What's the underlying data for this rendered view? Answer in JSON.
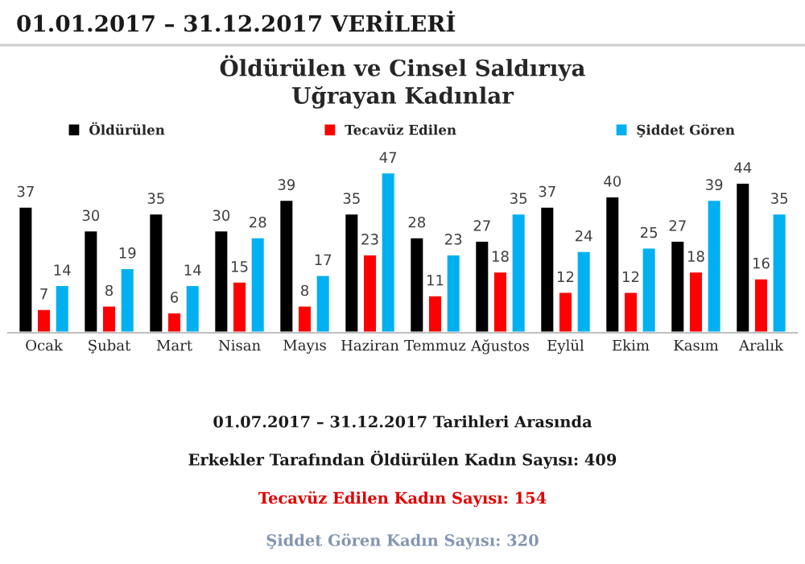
{
  "chart_data": {
    "type": "bar",
    "title": "Öldürülen ve Cinsel Saldırıya\nUğrayan Kadınlar",
    "categories": [
      "Ocak",
      "Şubat",
      "Mart",
      "Nisan",
      "Mayıs",
      "Haziran",
      "Temmuz",
      "Ağustos",
      "Eylül",
      "Ekim",
      "Kasım",
      "Aralık"
    ],
    "series": [
      {
        "name": "Öldürülen",
        "color": "#000000",
        "values": [
          37,
          30,
          35,
          30,
          39,
          35,
          28,
          27,
          37,
          40,
          27,
          44
        ]
      },
      {
        "name": "Tecavüz Edilen",
        "color": "#ff0000",
        "values": [
          7,
          8,
          6,
          15,
          8,
          23,
          11,
          18,
          12,
          12,
          18,
          16
        ]
      },
      {
        "name": "Şiddet Gören",
        "color": "#00b0f0",
        "values": [
          14,
          19,
          14,
          28,
          17,
          47,
          23,
          35,
          24,
          25,
          39,
          35
        ]
      }
    ],
    "data_labels": true,
    "legend": "top",
    "grid": false,
    "tick_labels": "x",
    "annotations": [
      "01.01.2017 – 31.12.2017 VERİLERİ",
      "01.07.2017 – 31.12.2017 Tarihleri Arasında",
      "Erkekler Tarafından Öldürülen Kadın Sayısı: 409",
      "Tecavüz Edilen Kadın Sayısı: 154",
      "Şiddet Gören Kadın Sayısı: 320"
    ]
  }
}
